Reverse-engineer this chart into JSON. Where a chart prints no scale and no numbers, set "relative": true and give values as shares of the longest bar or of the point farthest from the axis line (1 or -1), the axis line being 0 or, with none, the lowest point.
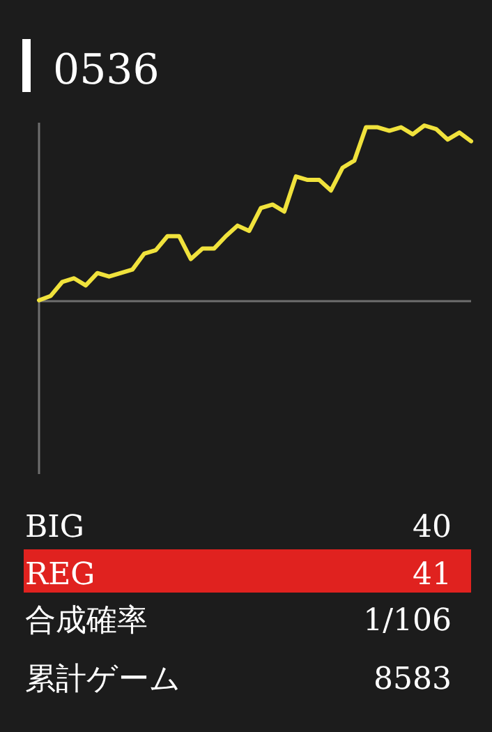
{
  "chart_data": {
    "type": "line",
    "title": "0536",
    "relative": true,
    "categories": [
      null,
      null,
      null,
      null,
      null,
      null,
      null,
      null,
      null,
      null,
      null,
      null,
      null,
      null,
      null,
      null,
      null,
      null,
      null,
      null,
      null,
      null,
      null,
      null,
      null,
      null,
      null,
      null,
      null,
      null,
      null,
      null,
      null,
      null,
      null,
      null,
      null,
      null
    ],
    "series": [
      {
        "color": "#f0e23c",
        "values": [
          0.005,
          0.03,
          0.11,
          0.13,
          0.09,
          0.16,
          0.14,
          0.16,
          0.18,
          0.27,
          0.29,
          0.37,
          0.37,
          0.24,
          0.3,
          0.3,
          0.37,
          0.43,
          0.4,
          0.53,
          0.55,
          0.51,
          0.71,
          0.69,
          0.69,
          0.63,
          0.76,
          0.8,
          0.99,
          0.99,
          0.97,
          0.99,
          0.95,
          1.0,
          0.98,
          0.92,
          0.96,
          0.91
        ]
      }
    ],
    "annotations": [
      "BIG",
      "40",
      "REG",
      "41",
      "合成確率",
      "1/106",
      "累計ゲーム",
      "8583"
    ]
  }
}
